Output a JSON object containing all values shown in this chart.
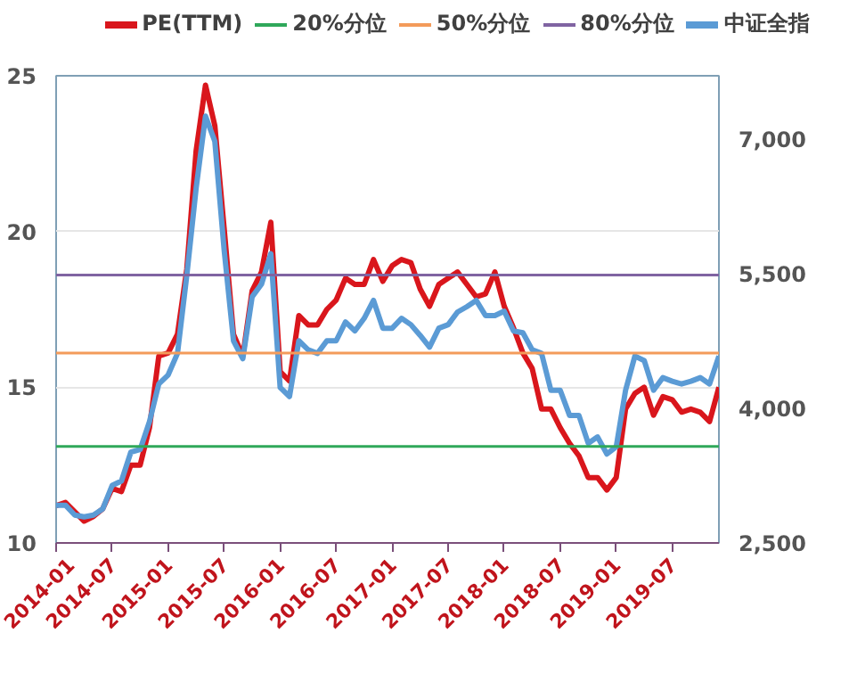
{
  "chart_data": {
    "type": "line",
    "x": [
      "2014-01",
      "2014-02",
      "2014-03",
      "2014-04",
      "2014-05",
      "2014-06",
      "2014-07",
      "2014-08",
      "2014-09",
      "2014-10",
      "2014-11",
      "2014-12",
      "2015-01",
      "2015-02",
      "2015-03",
      "2015-04",
      "2015-05",
      "2015-06",
      "2015-07",
      "2015-08",
      "2015-09",
      "2015-10",
      "2015-11",
      "2015-12",
      "2016-01",
      "2016-02",
      "2016-03",
      "2016-04",
      "2016-05",
      "2016-06",
      "2016-07",
      "2016-08",
      "2016-09",
      "2016-10",
      "2016-11",
      "2016-12",
      "2017-01",
      "2017-02",
      "2017-03",
      "2017-04",
      "2017-05",
      "2017-06",
      "2017-07",
      "2017-08",
      "2017-09",
      "2017-10",
      "2017-11",
      "2017-12",
      "2018-01",
      "2018-02",
      "2018-03",
      "2018-04",
      "2018-05",
      "2018-06",
      "2018-07",
      "2018-08",
      "2018-09",
      "2018-10",
      "2018-11",
      "2018-12",
      "2019-01",
      "2019-02",
      "2019-03",
      "2019-04",
      "2019-05",
      "2019-06",
      "2019-07",
      "2019-08",
      "2019-09",
      "2019-10",
      "2019-11",
      "2019-12"
    ],
    "series": [
      {
        "name": "PE(TTM)",
        "color": "#d9161c",
        "values": [
          11.2,
          11.3,
          11.0,
          10.7,
          10.85,
          11.1,
          11.75,
          11.65,
          12.5,
          12.5,
          13.7,
          16.0,
          16.1,
          16.7,
          18.8,
          22.6,
          24.7,
          23.4,
          20.1,
          16.7,
          16.0,
          18.1,
          18.7,
          20.3,
          15.5,
          15.2,
          17.3,
          17.0,
          17.0,
          17.5,
          17.8,
          18.5,
          18.3,
          18.3,
          19.1,
          18.4,
          18.9,
          19.1,
          19.0,
          18.15,
          17.6,
          18.3,
          18.5,
          18.7,
          18.3,
          17.9,
          18.0,
          18.7,
          17.6,
          16.9,
          16.1,
          15.6,
          14.3,
          14.3,
          13.7,
          13.2,
          12.8,
          12.1,
          12.1,
          11.7,
          12.1,
          14.3,
          14.8,
          15.0,
          14.1,
          14.7,
          14.6,
          14.2,
          14.3,
          14.2,
          13.9,
          15.0
        ]
      },
      {
        "name": "中证全指",
        "color": "#5b9bd5",
        "axis": "y2",
        "values": [
          2920,
          2920,
          2810,
          2790,
          2810,
          2880,
          3140,
          3190,
          3510,
          3540,
          3850,
          4270,
          4370,
          4610,
          5480,
          6450,
          7250,
          6970,
          5760,
          4750,
          4550,
          5240,
          5380,
          5720,
          4230,
          4130,
          4750,
          4650,
          4610,
          4750,
          4750,
          4960,
          4860,
          5000,
          5200,
          4890,
          4890,
          5000,
          4930,
          4810,
          4680,
          4890,
          4930,
          5070,
          5130,
          5200,
          5030,
          5030,
          5080,
          4860,
          4840,
          4650,
          4610,
          4200,
          4200,
          3920,
          3920,
          3610,
          3680,
          3490,
          3570,
          4200,
          4580,
          4530,
          4200,
          4340,
          4300,
          4270,
          4300,
          4340,
          4270,
          4580
        ]
      }
    ],
    "ref_lines": [
      {
        "axis": "y",
        "value": 13.1,
        "label": "20%分位",
        "color": "#2fa85a"
      },
      {
        "axis": "y",
        "value": 16.1,
        "label": "50%分位",
        "color": "#f39b5a"
      },
      {
        "axis": "y",
        "value": 18.6,
        "label": "80%分位",
        "color": "#8064a2"
      }
    ],
    "xlim": [
      "2014-01",
      "2019-12"
    ],
    "xticks": [
      "2014-01",
      "2014-07",
      "2015-01",
      "2015-07",
      "2016-01",
      "2016-07",
      "2017-01",
      "2017-07",
      "2018-01",
      "2018-07",
      "2019-01",
      "2019-07"
    ],
    "ylim": [
      10,
      25
    ],
    "yticks": [
      10,
      15,
      20,
      25
    ],
    "y2lim": [
      2500,
      7700
    ],
    "y2ticks": [
      {
        "value": 2500,
        "label": "2,500"
      },
      {
        "value": 4000,
        "label": "4,000"
      },
      {
        "value": 5500,
        "label": "5,500"
      },
      {
        "value": 7000,
        "label": "7,000"
      }
    ],
    "grid": "y",
    "legend": "top"
  }
}
